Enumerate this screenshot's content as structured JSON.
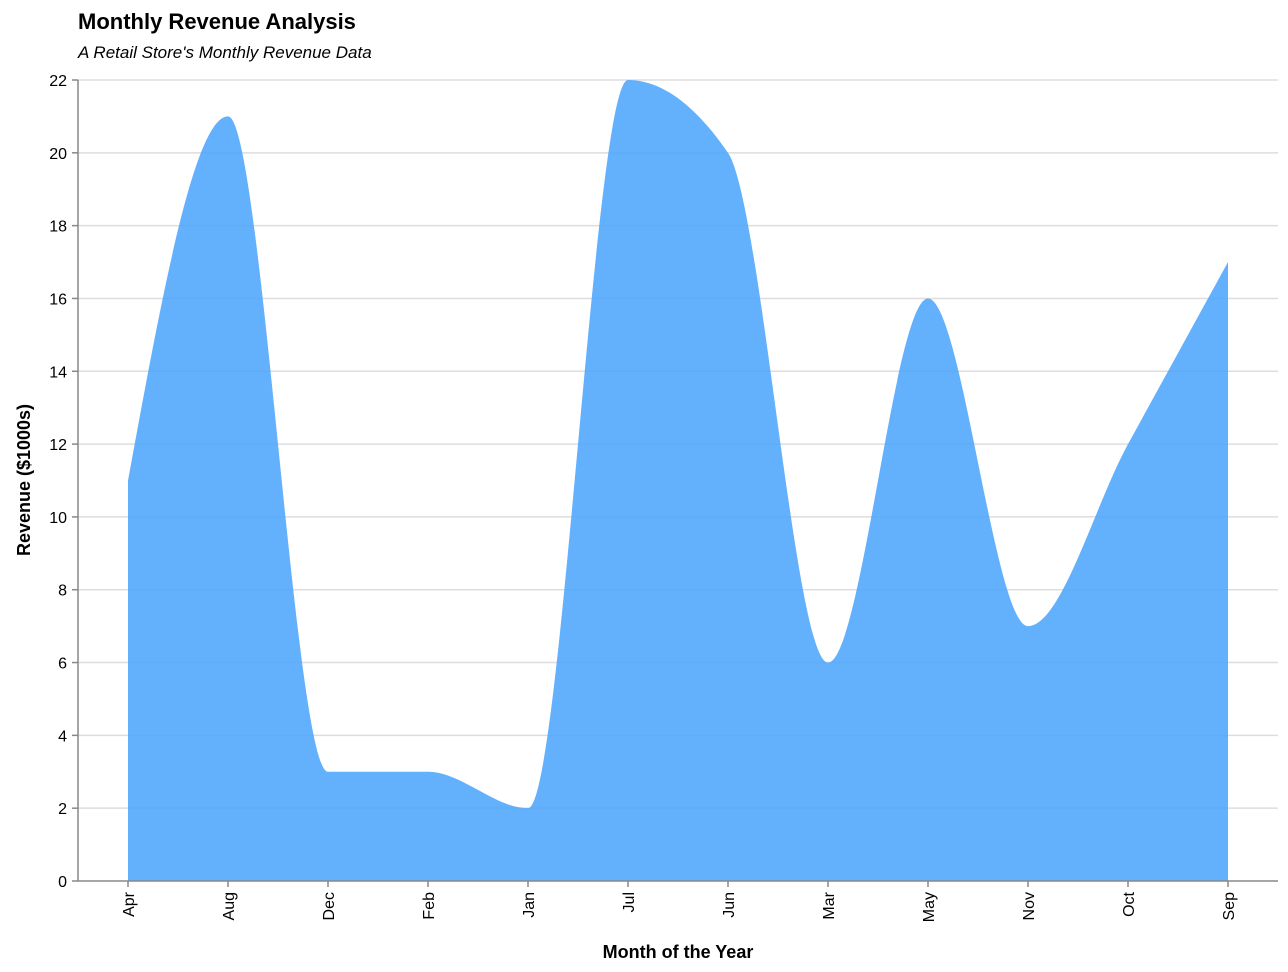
{
  "chart_data": {
    "type": "area",
    "title": "Monthly Revenue Analysis",
    "subtitle": "A Retail Store's Monthly Revenue Data",
    "xlabel": "Month of the Year",
    "ylabel": "Revenue ($1000s)",
    "categories": [
      "Apr",
      "Aug",
      "Dec",
      "Feb",
      "Jan",
      "Jul",
      "Jun",
      "Mar",
      "May",
      "Nov",
      "Oct",
      "Sep"
    ],
    "values": [
      11,
      21,
      3,
      3,
      2,
      22,
      20,
      6,
      16,
      7,
      12,
      17
    ],
    "ylim": [
      0,
      22
    ],
    "yticks": [
      0,
      2,
      4,
      6,
      8,
      10,
      12,
      14,
      16,
      18,
      20,
      22
    ],
    "grid": true,
    "fill_color": "#4da6fc",
    "interpolation": "monotone"
  }
}
